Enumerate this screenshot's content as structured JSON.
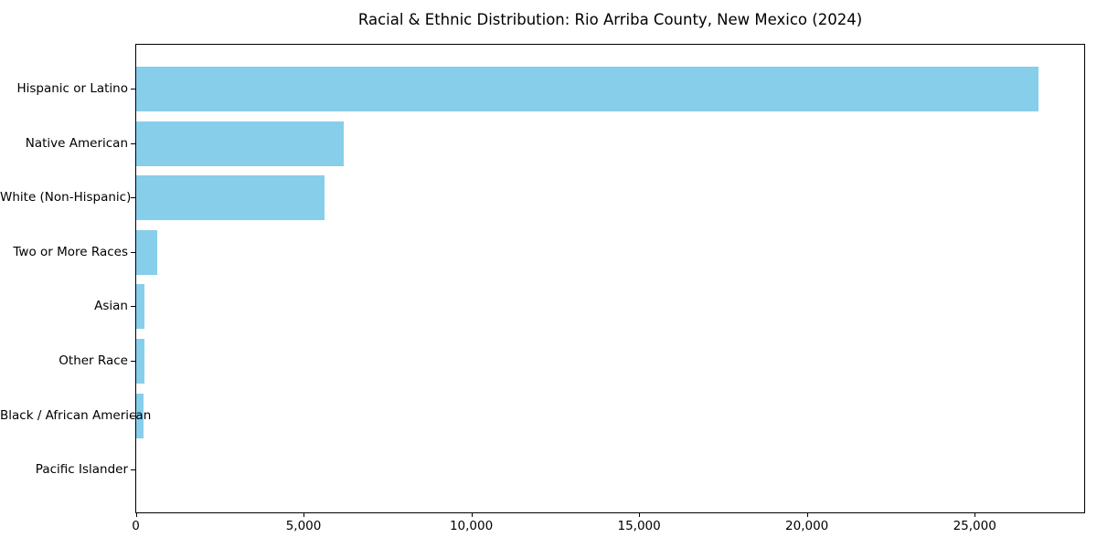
{
  "chart_data": {
    "type": "bar",
    "orientation": "horizontal",
    "title": "Racial & Ethnic Distribution: Rio Arriba County, New Mexico (2024)",
    "categories": [
      "Hispanic or Latino",
      "Native American",
      "White (Non-Hispanic)",
      "Two or More Races",
      "Asian",
      "Other Race",
      "Black / African American",
      "Pacific Islander"
    ],
    "values": [
      26900,
      6180,
      5610,
      620,
      245,
      245,
      230,
      0
    ],
    "xlabel": "",
    "ylabel": "",
    "xlim": [
      0,
      28250
    ],
    "x_ticks": [
      0,
      5000,
      10000,
      15000,
      20000,
      25000
    ],
    "x_tick_labels": [
      "0",
      "5,000",
      "10,000",
      "15,000",
      "20,000",
      "25,000"
    ],
    "bar_color": "#87CEEB",
    "axis_color": "#000000",
    "background_color": "#FFFFFF",
    "grid": false,
    "legend": "none"
  }
}
